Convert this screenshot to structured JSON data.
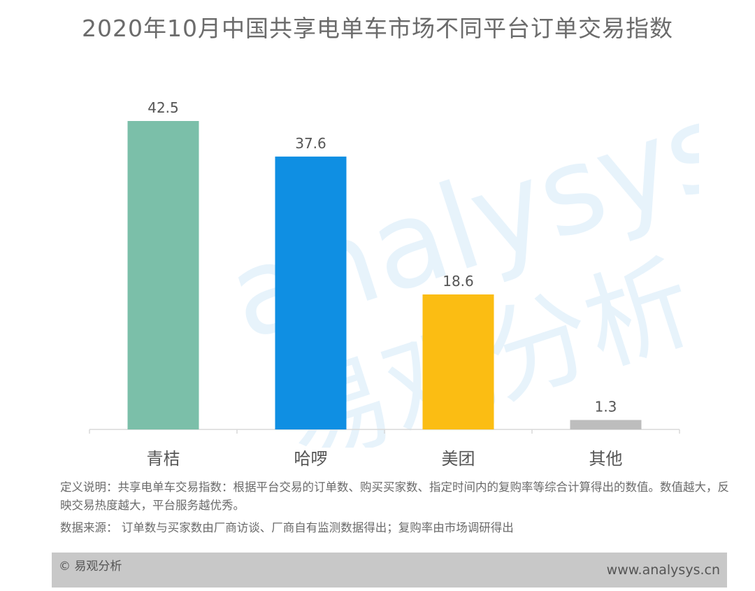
{
  "title": "2020年10月中国共享电单车市场不同平台订单交易指数",
  "chart_data": {
    "type": "bar",
    "categories": [
      "青桔",
      "哈啰",
      "美团",
      "其他"
    ],
    "values": [
      42.5,
      37.6,
      18.6,
      1.3
    ],
    "colors": [
      "#7bbfa9",
      "#0f8fe3",
      "#fbbd13",
      "#bdbdbd"
    ],
    "ylim": [
      0,
      42.5
    ],
    "grid": false,
    "legend": "none",
    "xlabel": "",
    "ylabel": ""
  },
  "notes": {
    "definition": "定义说明：共享电单车交易指数：根据平台交易的订单数、购买买家数、指定时间内的复购率等综合计算得出的数值。数值越大，反映交易热度越大，平台服务越优秀。",
    "source": "数据来源： 订单数与买家数由厂商访谈、厂商自有监测数据得出；复购率由市场调研得出"
  },
  "footer": {
    "brand": "© 易观分析",
    "site": "www.analysys.cn"
  },
  "watermark": {
    "latin": "analysys",
    "cjk": "易观分析"
  }
}
